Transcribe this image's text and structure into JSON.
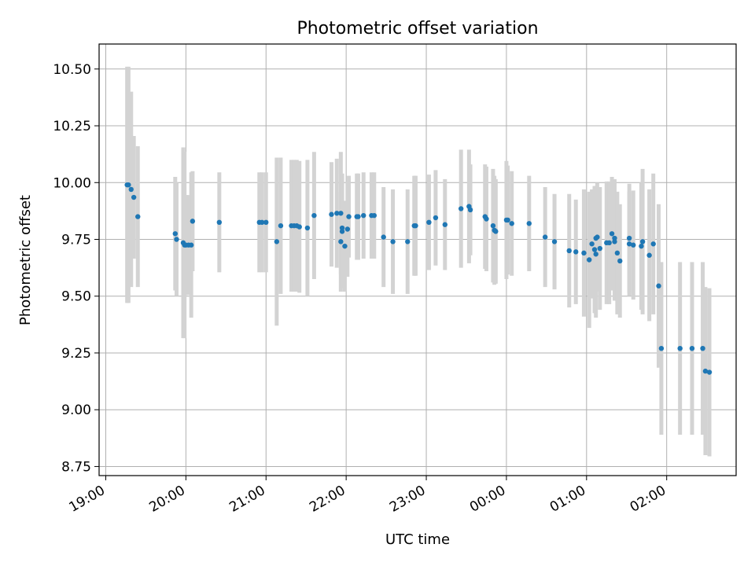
{
  "chart_data": {
    "type": "scatter",
    "title": "Photometric offset variation",
    "xlabel": "UTC time",
    "ylabel": "Photometric offset",
    "x_axis": "time",
    "xlim": [
      "18:55",
      "02:52"
    ],
    "ylim": [
      8.71,
      10.61
    ],
    "grid": true,
    "x_ticks": [
      "19:00",
      "20:00",
      "21:00",
      "22:00",
      "23:00",
      "00:00",
      "01:00",
      "02:00"
    ],
    "y_ticks": [
      "8.75",
      "9.00",
      "9.25",
      "9.50",
      "9.75",
      "10.00",
      "10.25",
      "10.50"
    ],
    "colors": {
      "point": "#1f77b4",
      "errorbar": "#d3d3d3",
      "grid": "#b0b0b0"
    },
    "series": [
      {
        "x": [
          "19:16",
          "19:17",
          "19:19",
          "19:21",
          "19:24",
          "19:52",
          "19:53",
          "19:58",
          "19:59",
          "20:00",
          "20:02",
          "20:04",
          "20:05",
          "20:25",
          "20:55",
          "20:57",
          "21:00",
          "21:08",
          "21:11",
          "21:19",
          "21:21",
          "21:23",
          "21:25",
          "21:31",
          "21:36",
          "21:49",
          "21:53",
          "21:56",
          "21:56",
          "21:57",
          "21:57",
          "21:59",
          "22:01",
          "22:02",
          "22:08",
          "22:09",
          "22:13",
          "22:19",
          "22:21",
          "22:28",
          "22:35",
          "22:46",
          "22:51",
          "22:52",
          "23:02",
          "23:07",
          "23:14",
          "23:26",
          "23:32",
          "23:33",
          "23:44",
          "23:45",
          "23:50",
          "23:51",
          "23:52",
          "24:00",
          "24:01",
          "24:04",
          "24:17",
          "24:29",
          "24:36",
          "24:47",
          "24:52",
          "24:58",
          "25:02",
          "25:04",
          "25:06",
          "25:07",
          "25:07",
          "25:08",
          "25:10",
          "25:15",
          "25:17",
          "25:19",
          "25:21",
          "25:21",
          "25:23",
          "25:25",
          "25:32",
          "25:32",
          "25:35",
          "25:41",
          "25:42",
          "25:47",
          "25:50",
          "25:54",
          "25:56",
          "26:10",
          "26:19",
          "26:27",
          "26:29",
          "26:32"
        ],
        "y": [
          9.99,
          9.99,
          9.97,
          9.935,
          9.85,
          9.775,
          9.75,
          9.735,
          9.725,
          9.725,
          9.725,
          9.725,
          9.83,
          9.825,
          9.825,
          9.825,
          9.825,
          9.74,
          9.81,
          9.81,
          9.81,
          9.81,
          9.805,
          9.8,
          9.855,
          9.86,
          9.865,
          9.865,
          9.74,
          9.8,
          9.785,
          9.72,
          9.795,
          9.85,
          9.85,
          9.85,
          9.855,
          9.855,
          9.855,
          9.76,
          9.74,
          9.74,
          9.81,
          9.81,
          9.825,
          9.845,
          9.815,
          9.885,
          9.895,
          9.88,
          9.85,
          9.84,
          9.81,
          9.79,
          9.785,
          9.835,
          9.835,
          9.82,
          9.82,
          9.76,
          9.74,
          9.7,
          9.695,
          9.69,
          9.66,
          9.73,
          9.705,
          9.685,
          9.755,
          9.76,
          9.71,
          9.735,
          9.735,
          9.775,
          9.755,
          9.74,
          9.69,
          9.655,
          9.755,
          9.73,
          9.725,
          9.72,
          9.74,
          9.68,
          9.73,
          9.545,
          9.27,
          9.27,
          9.27,
          9.27,
          9.17,
          9.165
        ],
        "yerr": [
          0.52,
          0.52,
          0.43,
          0.27,
          0.31,
          0.25,
          0.25,
          0.42,
          0.41,
          0.22,
          0.22,
          0.32,
          0.22,
          0.22,
          0.22,
          0.22,
          0.22,
          0.37,
          0.3,
          0.29,
          0.29,
          0.29,
          0.29,
          0.3,
          0.28,
          0.23,
          0.24,
          0.27,
          0.22,
          0.24,
          0.25,
          0.2,
          0.21,
          0.18,
          0.19,
          0.19,
          0.19,
          0.19,
          0.19,
          0.22,
          0.23,
          0.23,
          0.22,
          0.22,
          0.21,
          0.21,
          0.2,
          0.26,
          0.25,
          0.2,
          0.23,
          0.23,
          0.25,
          0.24,
          0.23,
          0.26,
          0.24,
          0.23,
          0.21,
          0.22,
          0.21,
          0.25,
          0.23,
          0.28,
          0.3,
          0.24,
          0.28,
          0.28,
          0.23,
          0.24,
          0.27,
          0.27,
          0.27,
          0.25,
          0.26,
          0.26,
          0.27,
          0.25,
          0.24,
          0.23,
          0.24,
          0.28,
          0.32,
          0.29,
          0.31,
          0.36,
          0.38,
          0.38,
          0.38,
          0.38,
          0.37,
          0.37
        ]
      }
    ]
  }
}
